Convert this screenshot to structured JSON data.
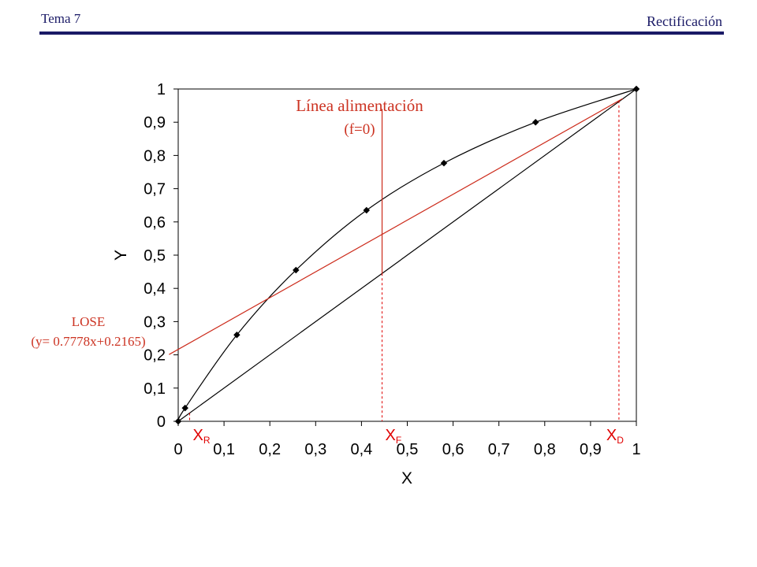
{
  "header": {
    "left": "Tema 7",
    "right": "Rectificación"
  },
  "colors": {
    "header": "#1a1a66",
    "equilibrium": "#000000",
    "diagonal": "#000000",
    "operating_line": "#cc2a1a",
    "feed_line": "#cc2a1a",
    "markers": "#e00000",
    "annotation": "#cc3322"
  },
  "chart_data": {
    "type": "line",
    "title": "",
    "xlabel": "X",
    "ylabel": "Y",
    "xlim": [
      0,
      1
    ],
    "ylim": [
      0,
      1
    ],
    "x_ticks": [
      "0",
      "0,1",
      "0,2",
      "0,3",
      "0,4",
      "0,5",
      "0,6",
      "0,7",
      "0,8",
      "0,9",
      "1"
    ],
    "y_ticks": [
      "0",
      "0,1",
      "0,2",
      "0,3",
      "0,4",
      "0,5",
      "0,6",
      "0,7",
      "0,8",
      "0,9",
      "1"
    ],
    "grid": false,
    "series": [
      {
        "kind": "equilibrium",
        "x": [
          0,
          0.015,
          0.128,
          0.257,
          0.411,
          0.58,
          0.78,
          1.0
        ],
        "y": [
          0,
          0.04,
          0.26,
          0.455,
          0.635,
          0.777,
          0.9,
          1.0
        ]
      },
      {
        "kind": "diagonal",
        "x": [
          0,
          1
        ],
        "y": [
          0,
          1
        ]
      },
      {
        "kind": "operating_line",
        "slope": 0.7778,
        "intercept": 0.2165,
        "x": [
          0,
          0.97
        ],
        "y": [
          0.2165,
          0.971
        ]
      },
      {
        "kind": "feed_line",
        "x": [
          0.445,
          0.445
        ],
        "y": [
          0.445,
          0.94
        ]
      }
    ],
    "markers": [
      {
        "main": "X",
        "sub": "R",
        "x": 0.025
      },
      {
        "main": "X",
        "sub": "F",
        "x": 0.445
      },
      {
        "main": "X",
        "sub": "D",
        "x": 0.962
      }
    ],
    "annotations": {
      "feed_line_label_1": "Línea  alimentación",
      "feed_line_label_2": "(f=0)",
      "lose_label_1": "LOSE",
      "lose_label_2": "(y= 0.7778x+0.2165)"
    }
  }
}
